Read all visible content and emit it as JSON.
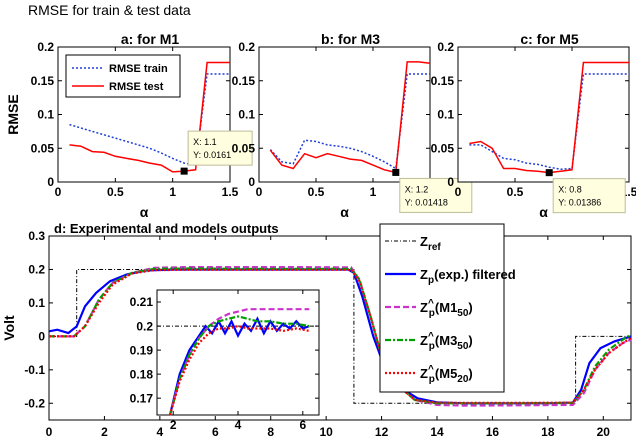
{
  "figure": {
    "title": "RMSE for train & test data"
  },
  "colors": {
    "train": "#1f3fd8",
    "test": "#ff0000",
    "ref": "#000000",
    "filtered": "#0000ff",
    "m1": "#cc33cc",
    "m3": "#00a000",
    "m5": "#ff0000",
    "tooltip_bg": "#ffffe0"
  },
  "chart_data": [
    {
      "type": "line",
      "title": "a: for M1",
      "xlabel": "α",
      "ylabel": "RMSE",
      "xlim": [
        0,
        1.5
      ],
      "ylim": [
        0,
        0.2
      ],
      "xticks": [
        "0",
        "0.5",
        "1",
        "1.5"
      ],
      "yticks": [
        "0",
        "0.05",
        "0.1",
        "0.15",
        "0.2"
      ],
      "legend": {
        "placement": "top-left",
        "entries": [
          "RMSE train",
          "RMSE test"
        ]
      },
      "series": [
        {
          "name": "RMSE train",
          "x": [
            0.1,
            0.2,
            0.3,
            0.4,
            0.5,
            0.6,
            0.7,
            0.8,
            0.9,
            1.0,
            1.1,
            1.2,
            1.3,
            1.4,
            1.5
          ],
          "y": [
            0.085,
            0.08,
            0.075,
            0.07,
            0.065,
            0.06,
            0.055,
            0.05,
            0.043,
            0.035,
            0.028,
            0.025,
            0.16,
            0.16,
            0.16
          ]
        },
        {
          "name": "RMSE test",
          "x": [
            0.1,
            0.2,
            0.3,
            0.4,
            0.5,
            0.6,
            0.7,
            0.8,
            0.9,
            1.0,
            1.1,
            1.2,
            1.3,
            1.4,
            1.5
          ],
          "y": [
            0.055,
            0.053,
            0.045,
            0.044,
            0.038,
            0.035,
            0.032,
            0.028,
            0.025,
            0.015,
            0.0161,
            0.018,
            0.177,
            0.177,
            0.177
          ]
        }
      ],
      "marker": {
        "x": 1.1,
        "y": 0.0161
      },
      "tooltip": [
        "X: 1.1",
        "Y: 0.0161"
      ]
    },
    {
      "type": "line",
      "title": "b:  for M3",
      "xlabel": "α",
      "xlim": [
        0,
        1.5
      ],
      "ylim": [
        0,
        0.2
      ],
      "xticks": [
        "0",
        "0.5",
        "1",
        "1.5"
      ],
      "yticks": [
        "0",
        "0.05",
        "0.1",
        "0.15",
        "0.2"
      ],
      "series": [
        {
          "name": "RMSE train",
          "x": [
            0.1,
            0.2,
            0.3,
            0.4,
            0.5,
            0.6,
            0.7,
            0.8,
            0.9,
            1.0,
            1.1,
            1.2,
            1.3,
            1.4,
            1.5
          ],
          "y": [
            0.048,
            0.03,
            0.027,
            0.062,
            0.06,
            0.055,
            0.053,
            0.05,
            0.045,
            0.038,
            0.03,
            0.02,
            0.16,
            0.16,
            0.16
          ]
        },
        {
          "name": "RMSE test",
          "x": [
            0.1,
            0.2,
            0.3,
            0.4,
            0.5,
            0.6,
            0.7,
            0.8,
            0.9,
            1.0,
            1.1,
            1.2,
            1.3,
            1.4,
            1.5
          ],
          "y": [
            0.047,
            0.025,
            0.02,
            0.042,
            0.036,
            0.042,
            0.038,
            0.034,
            0.032,
            0.025,
            0.018,
            0.01418,
            0.178,
            0.178,
            0.176
          ]
        }
      ],
      "marker": {
        "x": 1.2,
        "y": 0.01418
      },
      "tooltip": [
        "X: 1.2",
        "Y: 0.01418"
      ]
    },
    {
      "type": "line",
      "title": "c:  for M5",
      "xlabel": "α",
      "xlim": [
        0,
        1.5
      ],
      "ylim": [
        0,
        0.2
      ],
      "xticks": [
        "0",
        "0.5",
        "1",
        "1.5"
      ],
      "yticks": [
        "0",
        "0.05",
        "0.1",
        "0.15",
        "0.2"
      ],
      "series": [
        {
          "name": "RMSE train",
          "x": [
            0.1,
            0.2,
            0.3,
            0.4,
            0.5,
            0.6,
            0.7,
            0.8,
            0.9,
            1.0,
            1.1,
            1.2,
            1.3,
            1.4,
            1.5
          ],
          "y": [
            0.055,
            0.055,
            0.045,
            0.035,
            0.033,
            0.028,
            0.026,
            0.022,
            0.019,
            0.02,
            0.16,
            0.16,
            0.16,
            0.16,
            0.16
          ]
        },
        {
          "name": "RMSE test",
          "x": [
            0.1,
            0.2,
            0.3,
            0.4,
            0.5,
            0.6,
            0.7,
            0.8,
            0.9,
            1.0,
            1.1,
            1.2,
            1.3,
            1.4,
            1.5
          ],
          "y": [
            0.057,
            0.06,
            0.05,
            0.02,
            0.02,
            0.017,
            0.016,
            0.01386,
            0.016,
            0.018,
            0.177,
            0.177,
            0.177,
            0.177,
            0.177
          ]
        }
      ],
      "marker": {
        "x": 0.8,
        "y": 0.01386
      },
      "tooltip": [
        "X: 0.8",
        "Y: 0.01386"
      ]
    },
    {
      "type": "line",
      "title": "d: Experimental and models outputs",
      "ylabel": "Volt",
      "xlim": [
        0,
        21
      ],
      "ylim": [
        -0.25,
        0.3
      ],
      "xticks": [
        "0",
        "2",
        "4",
        "6",
        "8",
        "10",
        "12",
        "14",
        "16",
        "18",
        "20"
      ],
      "yticks": [
        "-0.2",
        "-0.1",
        "0",
        "0.1",
        "0.2",
        "0.3"
      ],
      "legend": {
        "placement": "top-right",
        "entries": [
          {
            "base": "Z",
            "sup": "",
            "sub": "ref",
            "paren": ""
          },
          {
            "base": "Z",
            "sup": "",
            "sub": "p",
            "paren": "(exp.) filtered"
          },
          {
            "base": "Z",
            "sup": "^",
            "sub": "p",
            "paren": "(M1",
            "paren_sub": "50",
            "paren_end": ")"
          },
          {
            "base": "Z",
            "sup": "^",
            "sub": "p",
            "paren": "(M3",
            "paren_sub": "50",
            "paren_end": ")"
          },
          {
            "base": "Z",
            "sup": "^",
            "sub": "p",
            "paren": "(M5",
            "paren_sub": "20",
            "paren_end": ")"
          }
        ]
      },
      "series": [
        {
          "name": "Z_ref",
          "x": [
            0,
            1,
            1,
            11,
            11,
            19,
            19,
            21
          ],
          "y": [
            0,
            0,
            0.2,
            0.2,
            -0.2,
            -0.2,
            0,
            0
          ]
        },
        {
          "name": "Z_p (exp.) filtered",
          "x": [
            0,
            0.3,
            0.7,
            1.0,
            1.3,
            1.7,
            2.2,
            2.8,
            3.5,
            4.5,
            6,
            8,
            10,
            10.8,
            11.0,
            11.3,
            11.7,
            12.1,
            12.6,
            13.3,
            14,
            15,
            16,
            17,
            18,
            18.9,
            19.2,
            19.5,
            19.9,
            20.4,
            21
          ],
          "y": [
            0.015,
            0.02,
            0.01,
            0.03,
            0.09,
            0.13,
            0.165,
            0.185,
            0.197,
            0.2,
            0.2,
            0.2,
            0.2,
            0.2,
            0.19,
            0.12,
            0.0,
            -0.09,
            -0.15,
            -0.185,
            -0.197,
            -0.2,
            -0.2,
            -0.2,
            -0.2,
            -0.198,
            -0.16,
            -0.08,
            -0.035,
            -0.015,
            0.0
          ]
        },
        {
          "name": "Z_p (M1_50)",
          "x": [
            0,
            0.9,
            1.3,
            1.8,
            2.3,
            3,
            3.8,
            5,
            7,
            9,
            10.9,
            11.2,
            11.6,
            12,
            12.5,
            13.2,
            14,
            15,
            17,
            18.9,
            19.3,
            19.7,
            20.2,
            20.7,
            21
          ],
          "y": [
            0,
            0,
            0.03,
            0.11,
            0.16,
            0.19,
            0.205,
            0.207,
            0.207,
            0.207,
            0.206,
            0.17,
            0.06,
            -0.06,
            -0.14,
            -0.19,
            -0.205,
            -0.207,
            -0.206,
            -0.205,
            -0.17,
            -0.1,
            -0.05,
            -0.02,
            -0.01
          ]
        },
        {
          "name": "Z_p (M3_50)",
          "x": [
            0,
            0.9,
            1.3,
            1.8,
            2.3,
            3,
            3.8,
            5,
            7,
            9,
            10.9,
            11.2,
            11.6,
            12,
            12.5,
            13.2,
            14,
            15,
            17,
            18.9,
            19.3,
            19.7,
            20.2,
            20.7,
            21
          ],
          "y": [
            0,
            0,
            0.03,
            0.11,
            0.16,
            0.19,
            0.202,
            0.203,
            0.202,
            0.202,
            0.202,
            0.17,
            0.06,
            -0.06,
            -0.14,
            -0.19,
            -0.2,
            -0.2,
            -0.2,
            -0.199,
            -0.16,
            -0.09,
            -0.04,
            -0.01,
            0.005
          ]
        },
        {
          "name": "Z_p (M5_20)",
          "x": [
            0,
            0.9,
            1.3,
            1.8,
            2.3,
            3,
            3.8,
            5,
            7,
            9,
            10.9,
            11.2,
            11.6,
            12,
            12.5,
            13.2,
            14,
            15,
            17,
            18.9,
            19.3,
            19.7,
            20.2,
            20.7,
            21
          ],
          "y": [
            0,
            0,
            0.03,
            0.1,
            0.155,
            0.188,
            0.198,
            0.199,
            0.199,
            0.199,
            0.199,
            0.165,
            0.06,
            -0.06,
            -0.14,
            -0.19,
            -0.198,
            -0.199,
            -0.199,
            -0.198,
            -0.16,
            -0.1,
            -0.05,
            -0.02,
            -0.005
          ]
        }
      ],
      "inset": {
        "xlim": [
          1.5,
          6.5
        ],
        "ylim": [
          0.163,
          0.215
        ],
        "xticks": [
          "2",
          "4",
          "6"
        ],
        "yticks": [
          "0.17",
          "0.18",
          "0.19",
          "0.2",
          "0.21"
        ],
        "series": [
          {
            "name": "Z_ref",
            "x": [
              1.5,
              6.5
            ],
            "y": [
              0.2,
              0.2
            ]
          },
          {
            "name": "Z_p (exp.) filtered",
            "x": [
              1.9,
              2.2,
              2.5,
              2.8,
              3.0,
              3.2,
              3.4,
              3.6,
              3.8,
              4.0,
              4.2,
              4.4,
              4.6,
              4.8,
              5.0,
              5.2,
              5.4,
              5.6,
              5.8,
              6.0,
              6.2
            ],
            "y": [
              0.163,
              0.18,
              0.19,
              0.196,
              0.2,
              0.197,
              0.202,
              0.197,
              0.202,
              0.196,
              0.201,
              0.198,
              0.203,
              0.197,
              0.202,
              0.198,
              0.201,
              0.199,
              0.202,
              0.199,
              0.2
            ]
          },
          {
            "name": "Z_p (M1_50)",
            "x": [
              1.9,
              2.2,
              2.5,
              2.8,
              3.1,
              3.4,
              3.7,
              4.0,
              4.3,
              4.6,
              5.0,
              5.4,
              5.8,
              6.2
            ],
            "y": [
              0.163,
              0.178,
              0.188,
              0.195,
              0.2,
              0.203,
              0.205,
              0.206,
              0.207,
              0.207,
              0.207,
              0.207,
              0.207,
              0.207
            ]
          },
          {
            "name": "Z_p (M3_50)",
            "x": [
              1.9,
              2.2,
              2.5,
              2.8,
              3.1,
              3.4,
              3.7,
              4.0,
              4.3,
              4.6,
              5.0,
              5.4,
              5.8,
              6.2
            ],
            "y": [
              0.163,
              0.178,
              0.188,
              0.195,
              0.2,
              0.202,
              0.203,
              0.204,
              0.203,
              0.202,
              0.202,
              0.201,
              0.201,
              0.2
            ]
          },
          {
            "name": "Z_p (M5_20)",
            "x": [
              1.9,
              2.2,
              2.5,
              2.8,
              3.1,
              3.4,
              3.7,
              4.0,
              4.3,
              4.6,
              5.0,
              5.4,
              5.8,
              6.2
            ],
            "y": [
              0.163,
              0.177,
              0.186,
              0.193,
              0.197,
              0.199,
              0.199,
              0.2,
              0.199,
              0.199,
              0.199,
              0.198,
              0.199,
              0.198
            ]
          }
        ]
      }
    }
  ]
}
